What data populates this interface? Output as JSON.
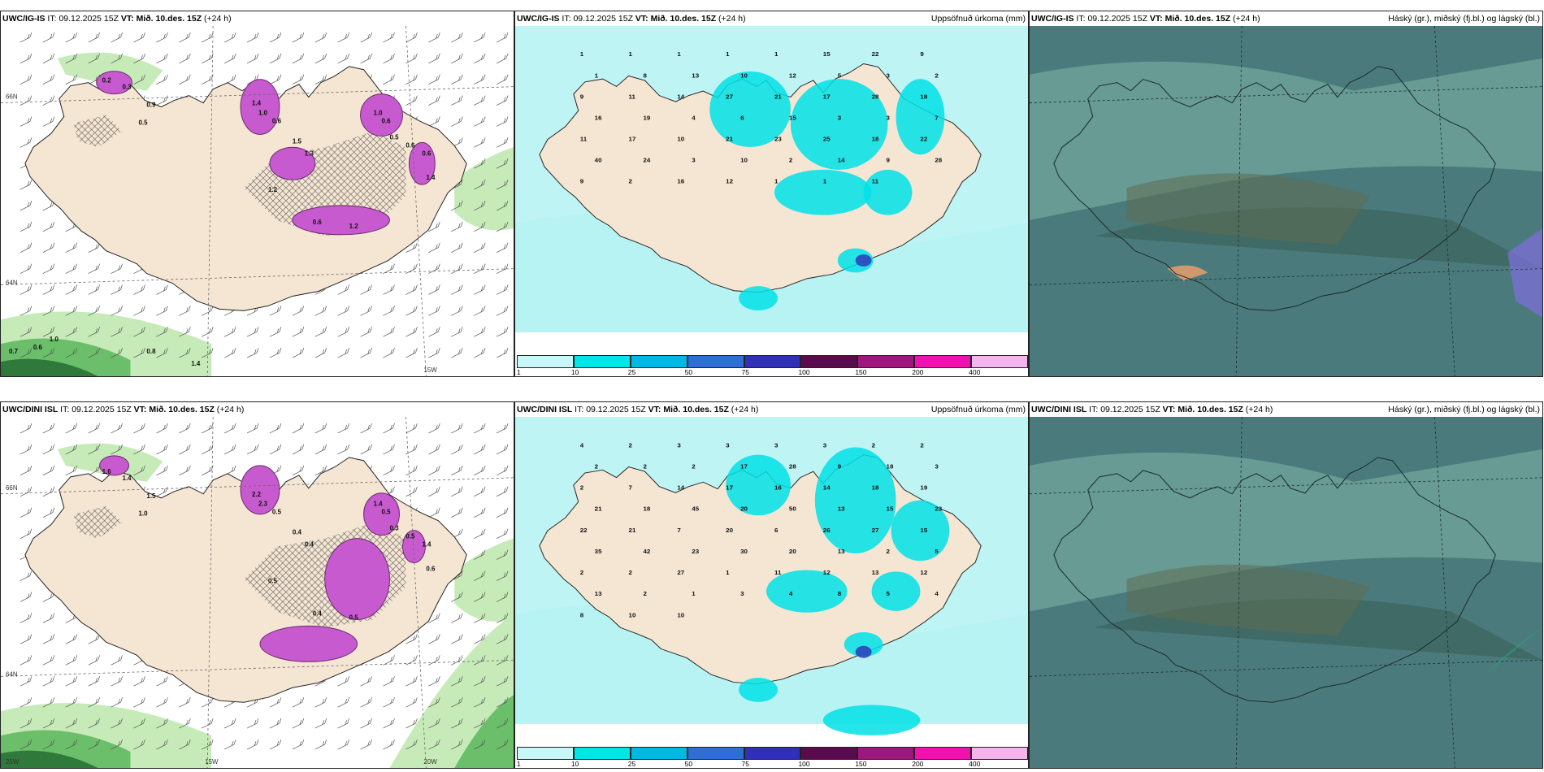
{
  "panels": [
    {
      "id": "top-left",
      "model": "UWC/IG-IS",
      "it_label": "IT:",
      "it_value": "09.12.2025 15Z",
      "vt_label": "VT:",
      "vt_value": "Mið. 10.des. 15Z",
      "lead": "(+24 h)",
      "right_title": "",
      "axis_labels": [
        "66N",
        "64N",
        "15W"
      ],
      "values": [
        "0.2",
        "0.3",
        "0.9",
        "0.5",
        "1.4",
        "1.0",
        "0.6",
        "1.5",
        "1.3",
        "1.0",
        "0.6",
        "0.5",
        "0.6",
        "0.6",
        "1.4",
        "1.2",
        "0.6",
        "1.2",
        "1.0",
        "0.6",
        "0.7",
        "0.8",
        "1.4"
      ]
    },
    {
      "id": "top-middle",
      "model": "UWC/IG-IS",
      "it_label": "IT:",
      "it_value": "09.12.2025 15Z",
      "vt_label": "VT:",
      "vt_value": "Mið. 10.des. 15Z",
      "lead": "(+24 h)",
      "right_title": "Uppsöfnuð úrkoma (mm)",
      "values": [
        "1",
        "1",
        "1",
        "1",
        "1",
        "15",
        "22",
        "9",
        "1",
        "8",
        "13",
        "10",
        "12",
        "5",
        "3",
        "2",
        "9",
        "11",
        "14",
        "27",
        "21",
        "17",
        "28",
        "18",
        "16",
        "19",
        "4",
        "6",
        "15",
        "3",
        "3",
        "7",
        "11",
        "17",
        "10",
        "21",
        "23",
        "25",
        "18",
        "22",
        "40",
        "24",
        "3",
        "10",
        "2",
        "14",
        "9",
        "28",
        "9",
        "2",
        "16",
        "12",
        "1",
        "1",
        "11"
      ]
    },
    {
      "id": "top-right",
      "model": "UWC/IG-IS",
      "it_label": "IT:",
      "it_value": "09.12.2025 15Z",
      "vt_label": "VT:",
      "vt_value": "Mið. 10.des. 15Z",
      "lead": "(+24 h)",
      "right_title": "Háský (gr.), miðský (fj.bl.) og lágský (bl.)"
    },
    {
      "id": "bottom-left",
      "model": "UWC/DINI ISL",
      "it_label": "IT:",
      "it_value": "09.12.2025 15Z",
      "vt_label": "VT:",
      "vt_value": "Mið. 10.des. 15Z",
      "lead": "(+24 h)",
      "right_title": "",
      "axis_labels": [
        "66N",
        "64N",
        "20W",
        "15W",
        "25W"
      ],
      "values": [
        "1.6",
        "1.4",
        "1.5",
        "1.0",
        "2.2",
        "2.3",
        "0.5",
        "0.4",
        "0.4",
        "1.4",
        "0.5",
        "0.3",
        "0.5",
        "1.4",
        "0.6",
        "0.5",
        "0.4",
        "0.5"
      ]
    },
    {
      "id": "bottom-middle",
      "model": "UWC/DINI ISL",
      "it_label": "IT:",
      "it_value": "09.12.2025 15Z",
      "vt_label": "VT:",
      "vt_value": "Mið. 10.des. 15Z",
      "lead": "(+24 h)",
      "right_title": "Uppsöfnuð úrkoma (mm)",
      "values": [
        "4",
        "2",
        "3",
        "3",
        "3",
        "3",
        "2",
        "2",
        "2",
        "2",
        "2",
        "17",
        "28",
        "9",
        "18",
        "3",
        "2",
        "7",
        "14",
        "17",
        "16",
        "14",
        "18",
        "19",
        "21",
        "18",
        "45",
        "20",
        "50",
        "13",
        "15",
        "23",
        "22",
        "21",
        "7",
        "20",
        "6",
        "26",
        "27",
        "15",
        "35",
        "42",
        "23",
        "30",
        "20",
        "13",
        "2",
        "5",
        "2",
        "2",
        "27",
        "1",
        "11",
        "12",
        "13",
        "12",
        "13",
        "2",
        "1",
        "3",
        "4",
        "8",
        "5",
        "4",
        "8",
        "10",
        "10"
      ]
    },
    {
      "id": "bottom-right",
      "model": "UWC/DINI ISL",
      "it_label": "IT:",
      "it_value": "09.12.2025 15Z",
      "vt_label": "VT:",
      "vt_value": "Mið. 10.des. 15Z",
      "lead": "(+24 h)",
      "right_title": "Háský (gr.), miðský (fj.bl.) og lágský (bl.)"
    }
  ],
  "colorbar": {
    "labels": [
      "1",
      "10",
      "25",
      "50",
      "75",
      "100",
      "150",
      "200",
      "400"
    ],
    "colors": [
      "#c8f7f7",
      "#00e5e8",
      "#00b7e5",
      "#2d6fd6",
      "#2f2fb8",
      "#5a0a4e",
      "#a0167f",
      "#ef11b0",
      "#f4b4ee"
    ]
  },
  "colors": {
    "land": "#f5e6d3",
    "precip_light": "#b8f3f4",
    "precip_mid": "#00e1e6",
    "wind_green": "#c6ebb8",
    "wind_green_dark": "#2f7a3a",
    "magenta": "#c85ad0",
    "cloud_base": "#4a7a7c",
    "cloud_dark": "#3b5f57"
  }
}
